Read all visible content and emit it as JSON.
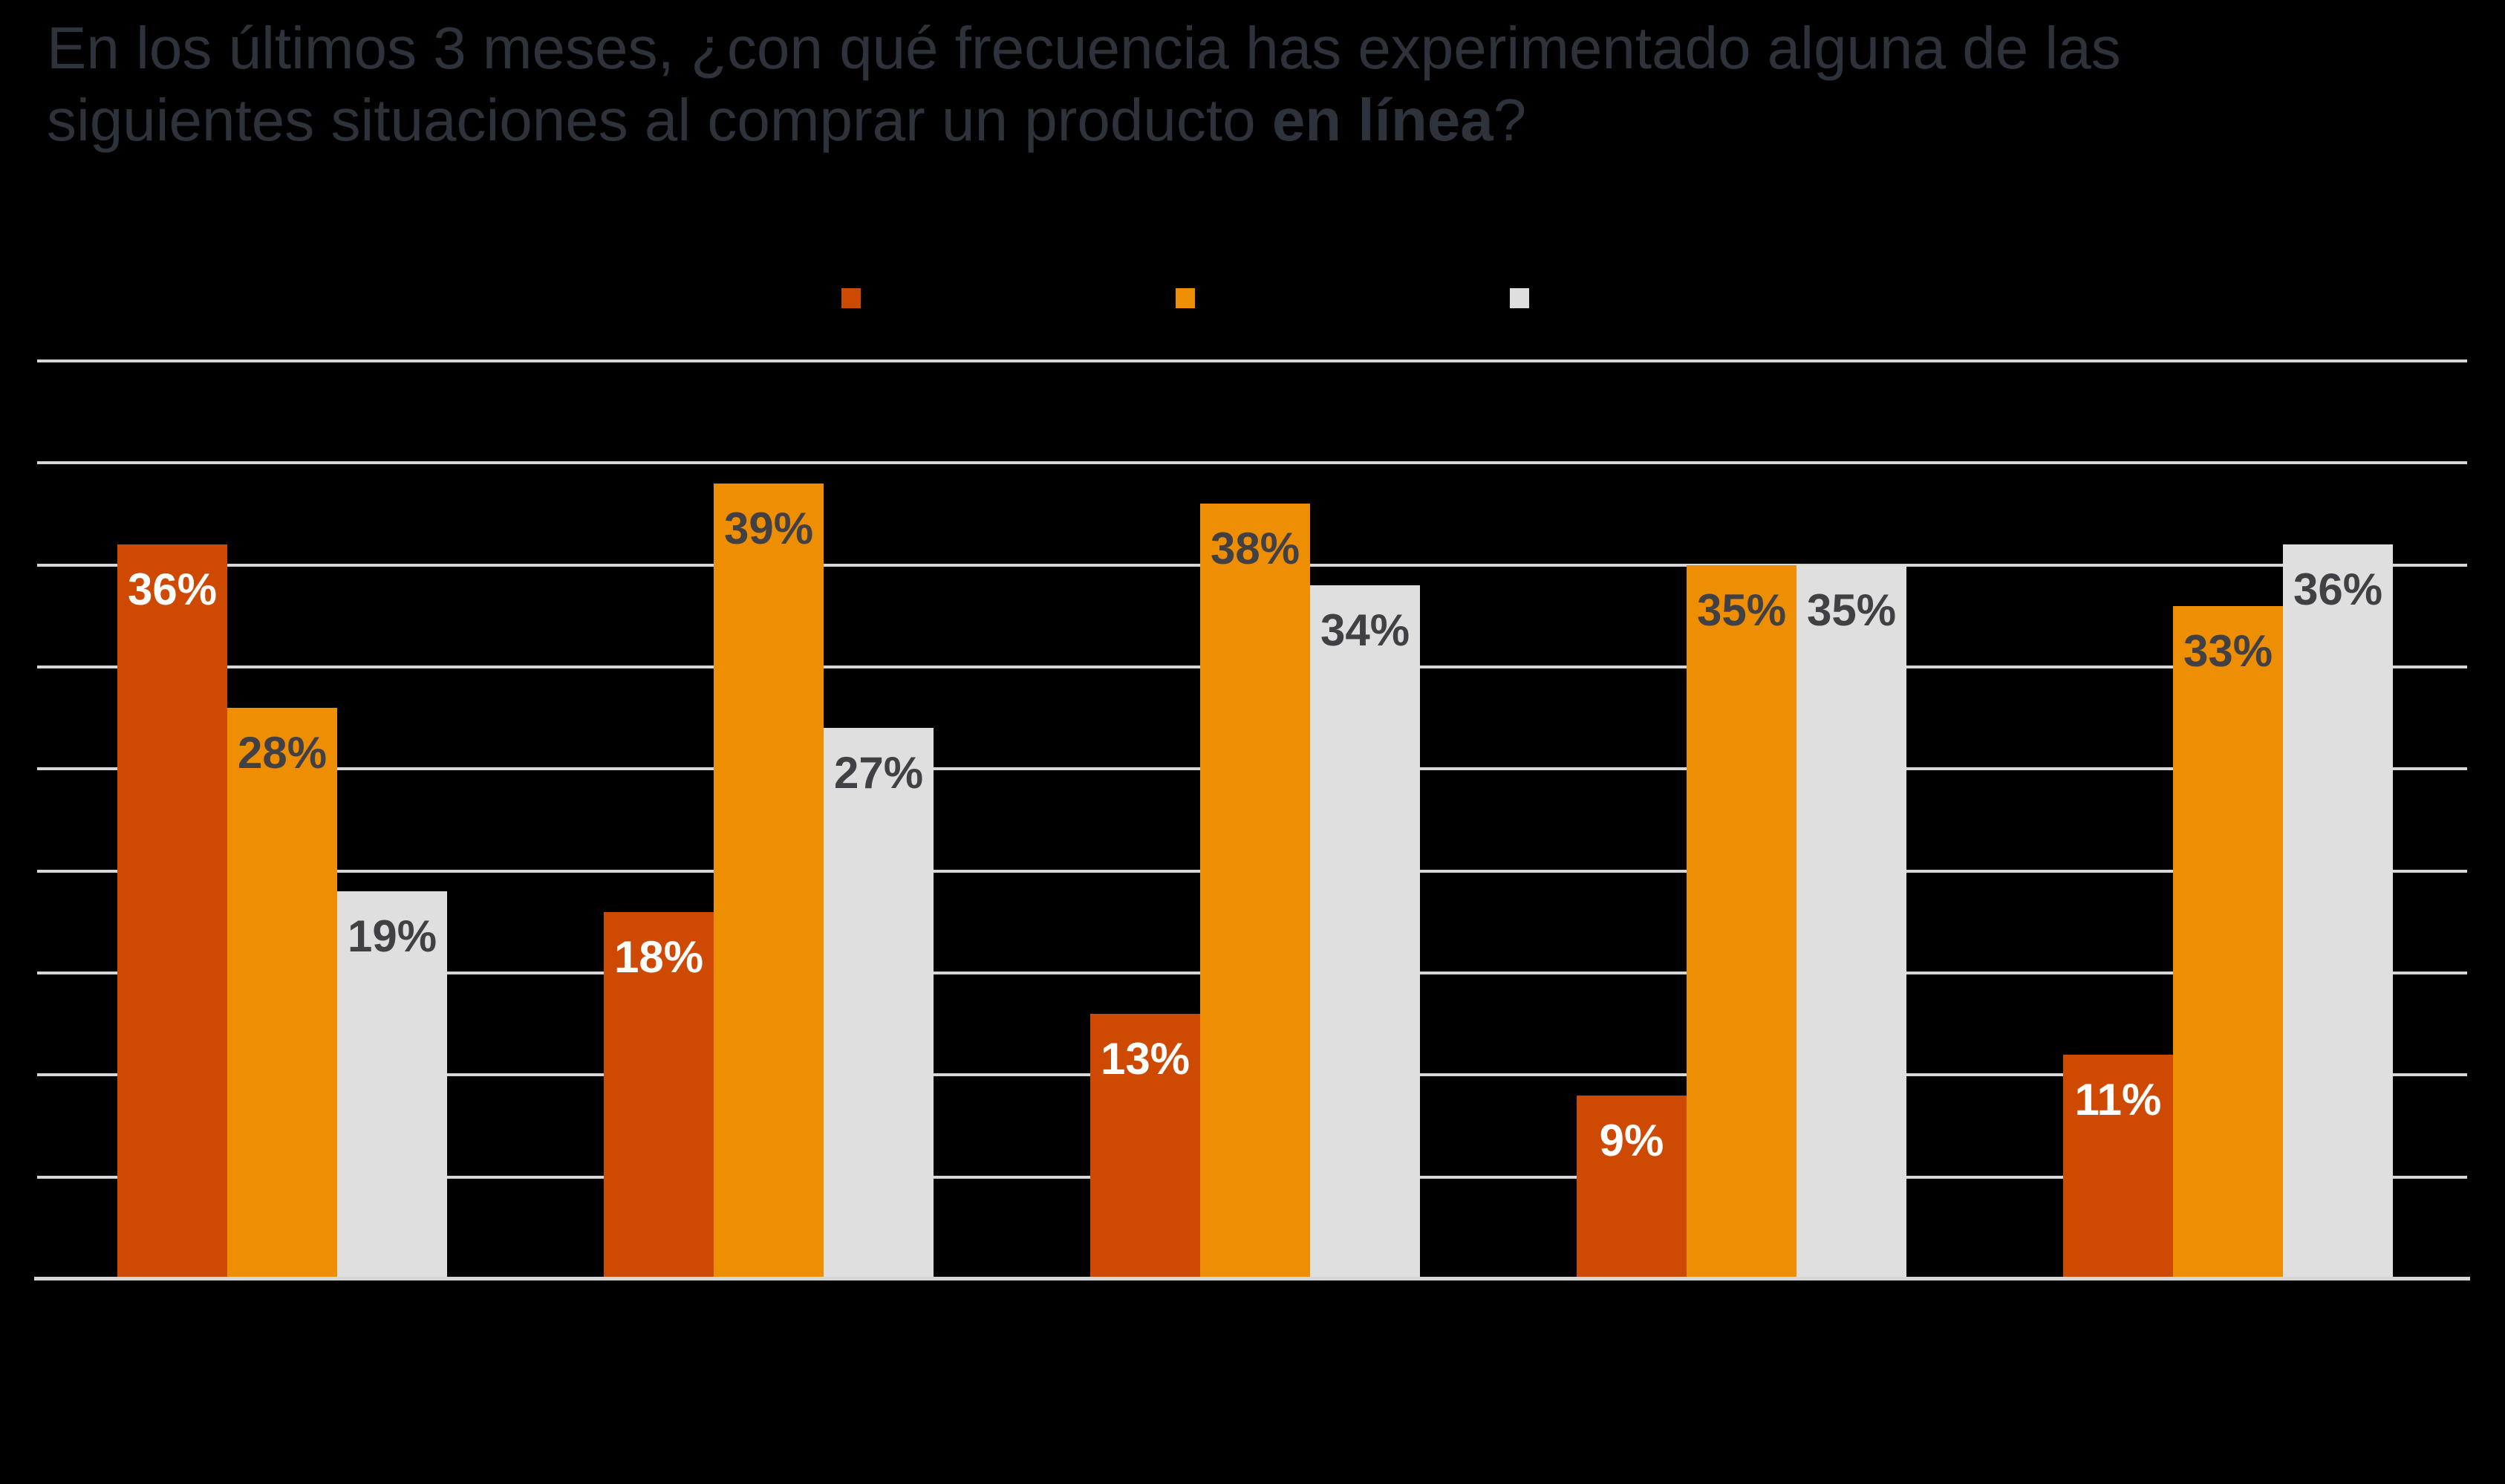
{
  "title": {
    "line1": "En los últimos 3 meses, ¿con qué frecuencia has experimentado alguna de las",
    "line2_prefix": "siguientes situaciones al comprar un producto ",
    "line2_bold": "en línea",
    "line2_suffix": "?"
  },
  "colors": {
    "background": "#000000",
    "title_text": "#2E323B",
    "gridline": "#D7D7D7",
    "series_dark_orange": "#CE4A03",
    "series_orange": "#ED8E03",
    "series_gray": "#DFDFDF",
    "label_on_dark": "#FFFFFF",
    "label_on_light": "#404045"
  },
  "legend": {
    "visible_labels": false,
    "items": [
      {
        "name": "",
        "color": "#CE4A03"
      },
      {
        "name": "",
        "color": "#ED8E03"
      },
      {
        "name": "",
        "color": "#DFDFDF"
      }
    ]
  },
  "chart_data": {
    "type": "bar",
    "title": "En los últimos 3 meses, ¿con qué frecuencia has experimentado alguna de las siguientes situaciones al comprar un producto en línea?",
    "categories": [
      "",
      "",
      "",
      "",
      ""
    ],
    "category_labels_visible": false,
    "axis_tick_labels_visible": false,
    "series": [
      {
        "name": "",
        "color": "#CE4A03",
        "label_color": "#FFFFFF",
        "values": [
          36,
          18,
          13,
          9,
          11
        ]
      },
      {
        "name": "",
        "color": "#ED8E03",
        "label_color": "#404045",
        "values": [
          28,
          39,
          38,
          35,
          33
        ]
      },
      {
        "name": "",
        "color": "#DFDFDF",
        "label_color": "#404045",
        "values": [
          19,
          27,
          34,
          35,
          36
        ]
      }
    ],
    "data_labels": [
      [
        "36%",
        "18%",
        "13%",
        "9%",
        "11%"
      ],
      [
        "28%",
        "39%",
        "38%",
        "35%",
        "33%"
      ],
      [
        "19%",
        "27%",
        "34%",
        "35%",
        "36%"
      ]
    ],
    "label_format": "{value}%",
    "ylim": [
      0,
      45
    ],
    "grid": true,
    "grid_step_pct": 5,
    "legend_position": "top-center"
  }
}
